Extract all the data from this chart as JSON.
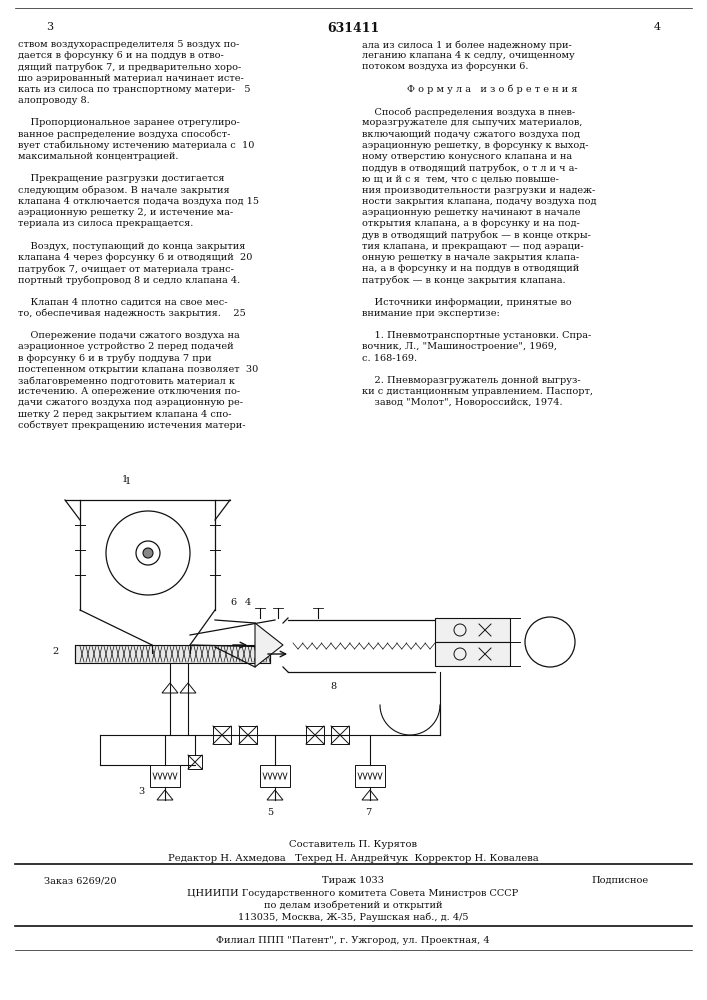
{
  "background_color": "#ffffff",
  "page_number_left": "3",
  "page_number_center": "631411",
  "page_number_right": "4",
  "left_col_text": [
    "ством воздухораспределителя 5 воздух по-",
    "дается в форсунку 6 и на поддув в отво-",
    "дящий патрубок 7, и предварительно хоро-",
    "шо аэрированный материал начинает исте-",
    "кать из силоса по транспортному матери-   5",
    "алопроводу 8.",
    "",
    "    Пропорциональное заранее отрегулиро-",
    "ванное распределение воздуха способст-",
    "вует стабильному истечению материала с  10",
    "максимальной концентрацией.",
    "",
    "    Прекращение разгрузки достигается",
    "следующим образом. В начале закрытия",
    "клапана 4 отключается подача воздуха под 15",
    "аэрационную решетку 2, и истечение ма-",
    "териала из силоса прекращается.",
    "",
    "    Воздух, поступающий до конца закрытия",
    "клапана 4 через форсунку 6 и отводящий  20",
    "патрубок 7, очищает от материала транс-",
    "портный трубопровод 8 и седло клапана 4.",
    "",
    "    Клапан 4 плотно садится на свое мес-",
    "то, обеспечивая надежность закрытия.    25",
    "",
    "    Опережение подачи сжатого воздуха на",
    "аэрационное устройство 2 перед подачей",
    "в форсунку 6 и в трубу поддува 7 при",
    "постепенном открытии клапана позволяет  30",
    "заблаговременно подготовить материал к",
    "истечению. А опережение отключения по-",
    "дачи сжатого воздуха под аэрационную ре-",
    "шетку 2 перед закрытием клапана 4 спо-",
    "собствует прекращению истечения матери-"
  ],
  "right_col_text": [
    "ала из силоса 1 и более надежному при-",
    "леганию клапана 4 к седлу, очищенному",
    "потоком воздуха из форсунки 6.",
    "",
    "    Ф о р м у л а   и з о б р е т е н и я",
    "",
    "    Способ распределения воздуха в пнев-",
    "моразгружателе для сыпучих материалов,",
    "включающий подачу сжатого воздуха под",
    "аэрационную решетку, в форсунку к выход-",
    "ному отверстию конусного клапана и на",
    "поддув в отводящий патрубок, о т л и ч а-",
    "ю щ и й с я  тем, что с целью повыше-",
    "ния производительности разгрузки и надеж-",
    "ности закрытия клапана, подачу воздуха под",
    "аэрационную решетку начинают в начале",
    "открытия клапана, а в форсунку и на под-",
    "дув в отводящий патрубок — в конце откры-",
    "тия клапана, и прекращают — под аэраци-",
    "онную решетку в начале закрытия клапа-",
    "на, а в форсунку и на поддув в отводящий",
    "патрубок — в конце закрытия клапана.",
    "",
    "    Источники информации, принятые во",
    "внимание при экспертизе:",
    "",
    "    1. Пневмотранспортные установки. Спра-",
    "вочник, Л., \"Машиностроение\", 1969,",
    "с. 168-169.",
    "",
    "    2. Пневморазгружатель донной выгруз-",
    "ки с дистанционным управлением. Паспорт,",
    "    завод \"Молот\", Новороссийск, 1974."
  ],
  "footer_text1": "Составитель П. Курятов",
  "footer_text2": "Редактор Н. Ахмедова   Техред Н. Андрейчук  Корректор Н. Ковалева",
  "table_col1": "Заказ 6269/20",
  "table_col2": "Тираж 1033",
  "table_col3": "Подписное",
  "center_line1": "ЦНИИПИ Государственного комитета Совета Министров СССР",
  "center_line2": "по делам изобретений и открытий",
  "center_line3": "113035, Москва, Ж-35, Раушская наб., д. 4/5",
  "filial": "Филиал ППП \"Патент\", г. Ужгород, ул. Проектная, 4",
  "text_color": "#111111",
  "line_color": "#111111"
}
